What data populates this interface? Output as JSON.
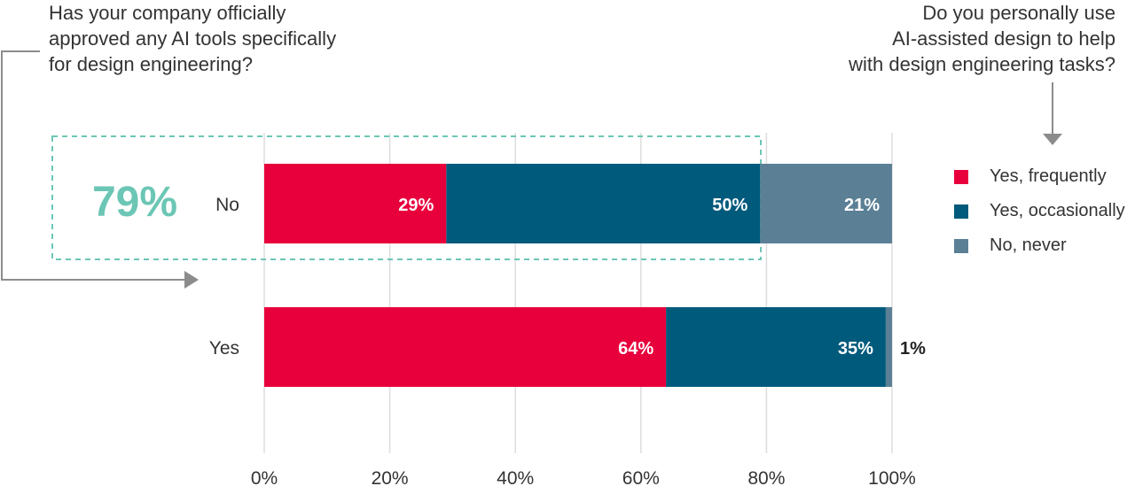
{
  "question_left": [
    "Has your company officially",
    "approved any AI tools specifically",
    "for design engineering?"
  ],
  "question_right": [
    "Do you personally use",
    "AI-assisted design to help",
    "with design engineering tasks?"
  ],
  "colors": {
    "yes_frequently": "#e8003c",
    "yes_occasionally": "#005a7c",
    "no_never": "#5b8096",
    "highlight": "#6cc6b5",
    "grid": "#dddddd",
    "arrow": "#8c8c8c"
  },
  "chart_data": {
    "type": "bar",
    "orientation": "horizontal",
    "stacked": true,
    "categories": [
      "No",
      "Yes"
    ],
    "series": [
      {
        "name": "Yes, frequently",
        "values": [
          29,
          64
        ],
        "color": "#e8003c"
      },
      {
        "name": "Yes, occasionally",
        "values": [
          50,
          35
        ],
        "color": "#005a7c"
      },
      {
        "name": "No, never",
        "values": [
          21,
          1
        ],
        "color": "#5b8096"
      }
    ],
    "data_labels": [
      [
        "29%",
        "50%",
        "21%"
      ],
      [
        "64%",
        "35%",
        "1%"
      ]
    ],
    "xlim": [
      0,
      100
    ],
    "xticks": [
      0,
      20,
      40,
      60,
      80,
      100
    ],
    "xtick_labels": [
      "0%",
      "20%",
      "40%",
      "60%",
      "80%",
      "100%"
    ],
    "grid": true,
    "legend_position": "right",
    "highlight": {
      "category": "No",
      "label": "79%"
    }
  }
}
